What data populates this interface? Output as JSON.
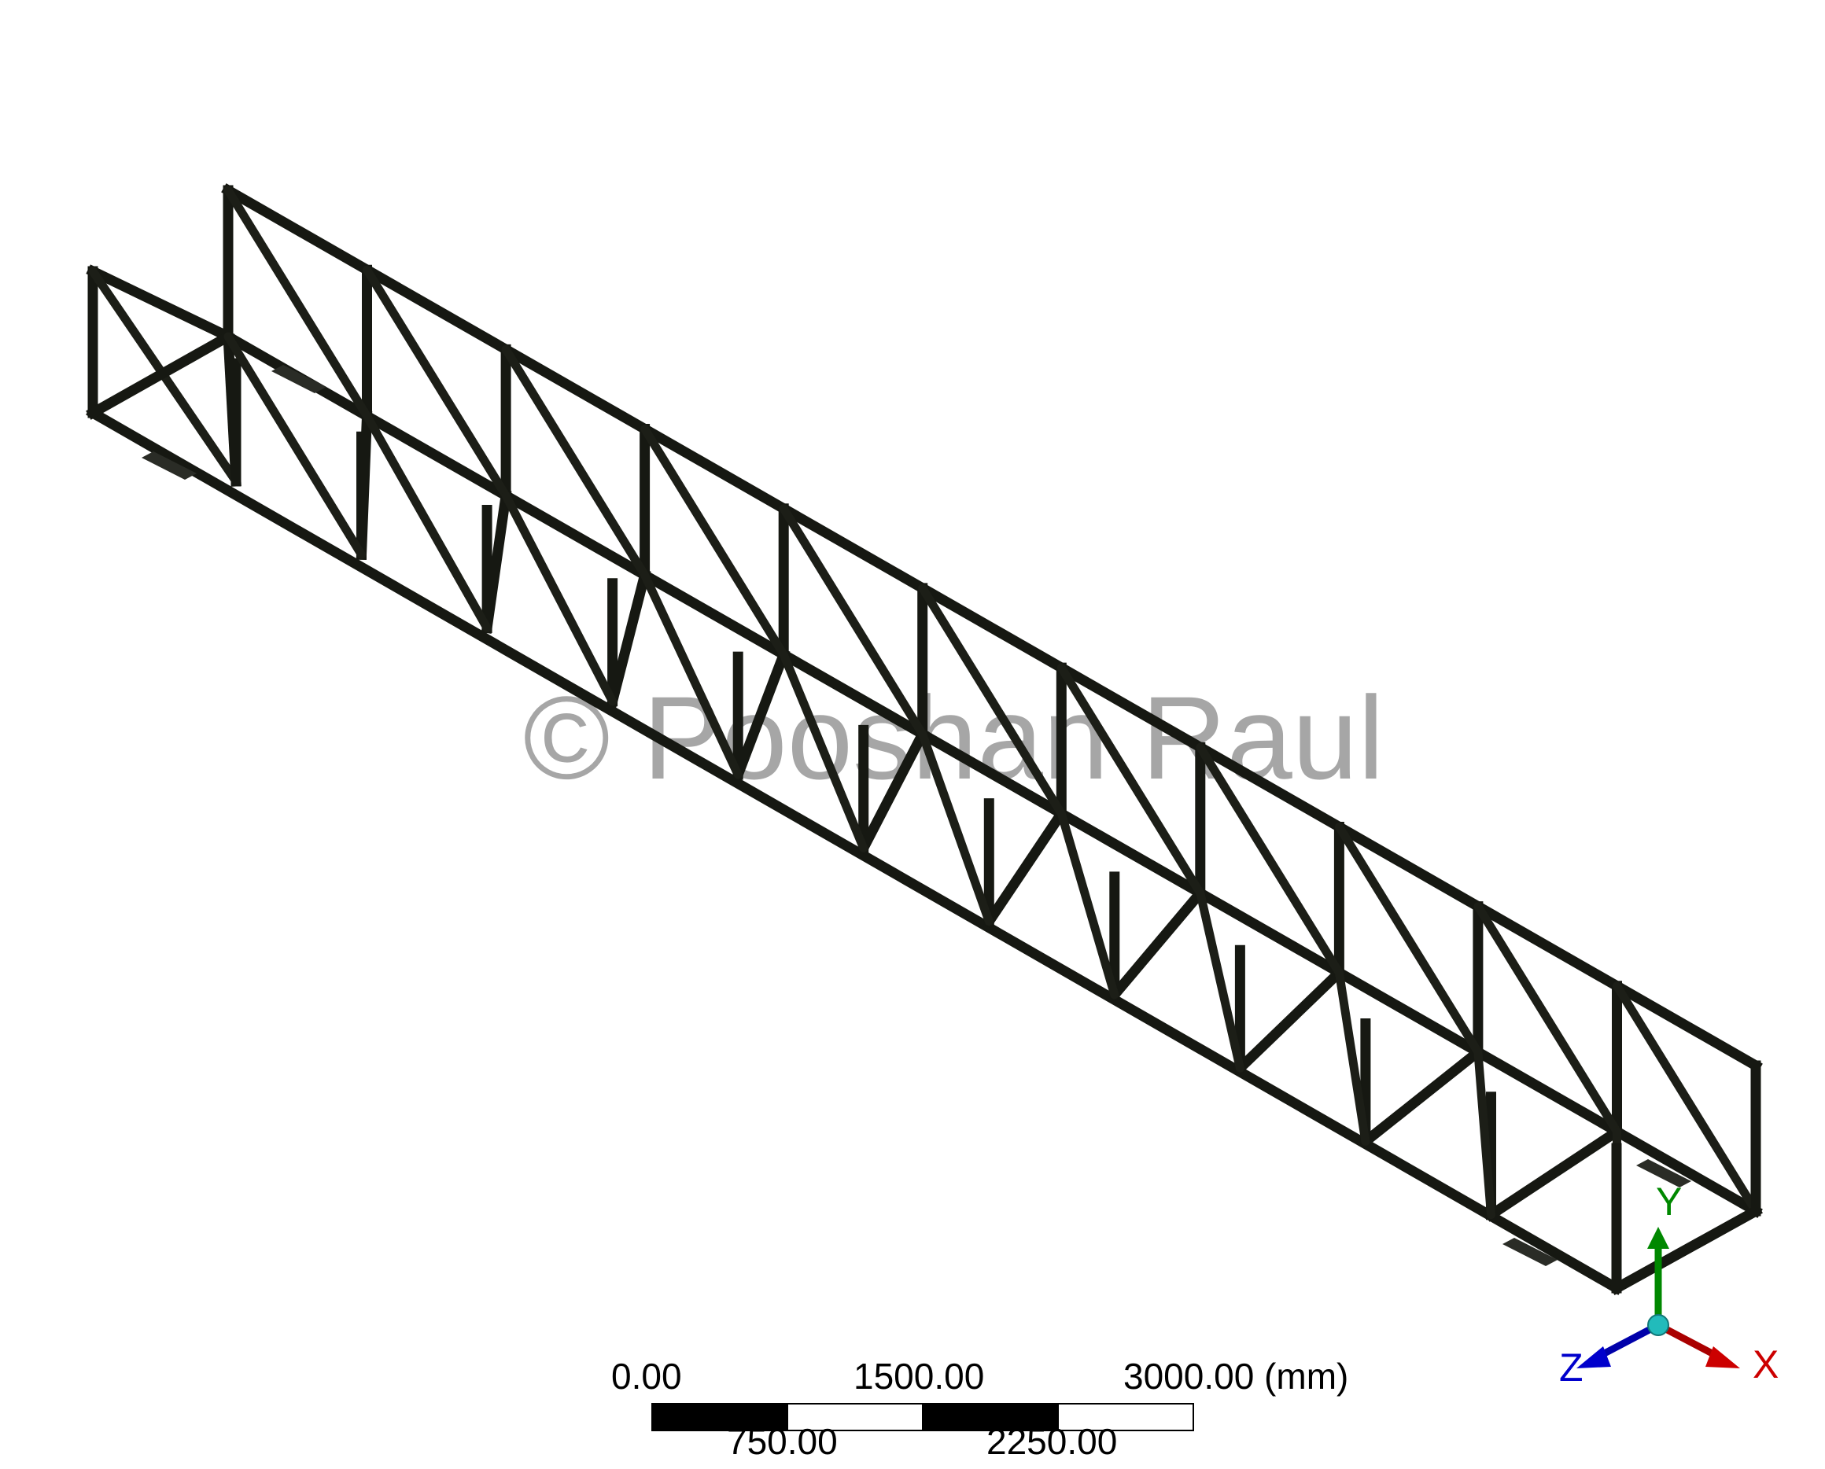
{
  "watermark": "© Pooshan Raul",
  "scale_bar": {
    "top_labels": [
      "0.00",
      "1500.00",
      "3000.00 (mm)"
    ],
    "bottom_labels": [
      "750.00",
      "2250.00"
    ]
  },
  "triad": {
    "x_label": "X",
    "y_label": "Y",
    "z_label": "Z",
    "x_color": "#cc0000",
    "y_color": "#008800",
    "z_color": "#0000cc",
    "origin_color": "#22bbbb"
  },
  "colors": {
    "frame": "#161812",
    "background": "#ffffff"
  }
}
